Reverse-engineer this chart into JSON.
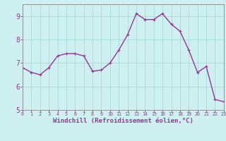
{
  "x": [
    0,
    1,
    2,
    3,
    4,
    5,
    6,
    7,
    8,
    9,
    10,
    11,
    12,
    13,
    14,
    15,
    16,
    17,
    18,
    19,
    20,
    21,
    22,
    23
  ],
  "y": [
    6.8,
    6.6,
    6.5,
    6.8,
    7.3,
    7.4,
    7.4,
    7.3,
    6.65,
    6.7,
    7.0,
    7.55,
    8.2,
    9.1,
    8.85,
    8.85,
    9.1,
    8.65,
    8.35,
    7.55,
    6.6,
    6.85,
    5.45,
    5.35
  ],
  "line_color": "#993399",
  "marker": "+",
  "marker_size": 3,
  "marker_linewidth": 0.8,
  "bg_color": "#cff0f0",
  "grid_color": "#aadddd",
  "xlabel": "Windchill (Refroidissement éolien,°C)",
  "xlabel_color": "#993399",
  "tick_color": "#993399",
  "spine_color": "#888888",
  "xlim": [
    0,
    23
  ],
  "ylim": [
    5.0,
    9.5
  ],
  "yticks": [
    5,
    6,
    7,
    8,
    9
  ],
  "xticks": [
    0,
    1,
    2,
    3,
    4,
    5,
    6,
    7,
    8,
    9,
    10,
    11,
    12,
    13,
    14,
    15,
    16,
    17,
    18,
    19,
    20,
    21,
    22,
    23
  ],
  "linewidth": 1.0,
  "xlabel_fontsize": 6.5,
  "xtick_fontsize": 4.8,
  "ytick_fontsize": 7
}
